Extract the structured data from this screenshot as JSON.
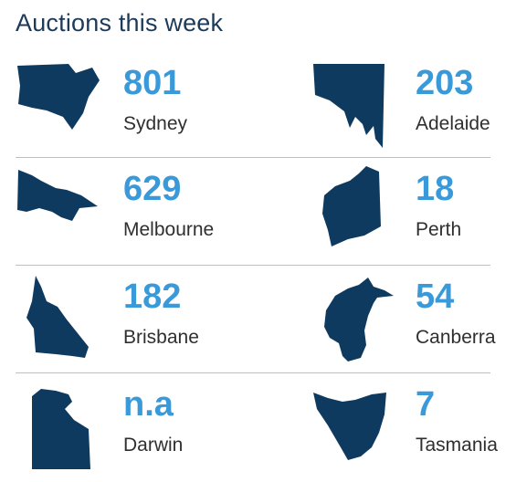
{
  "title": "Auctions this week",
  "accent_color": "#3a9ad9",
  "shape_color": "#0f3a5f",
  "cities": [
    {
      "name": "Sydney",
      "count": "801",
      "shape": "nsw-map-icon"
    },
    {
      "name": "Adelaide",
      "count": "203",
      "shape": "sa-map-icon"
    },
    {
      "name": "Melbourne",
      "count": "629",
      "shape": "vic-map-icon"
    },
    {
      "name": "Perth",
      "count": "18",
      "shape": "wa-map-icon"
    },
    {
      "name": "Brisbane",
      "count": "182",
      "shape": "qld-map-icon"
    },
    {
      "name": "Canberra",
      "count": "54",
      "shape": "act-map-icon"
    },
    {
      "name": "Darwin",
      "count": "n.a",
      "shape": "nt-map-icon"
    },
    {
      "name": "Tasmania",
      "count": "7",
      "shape": "tas-map-icon"
    }
  ]
}
